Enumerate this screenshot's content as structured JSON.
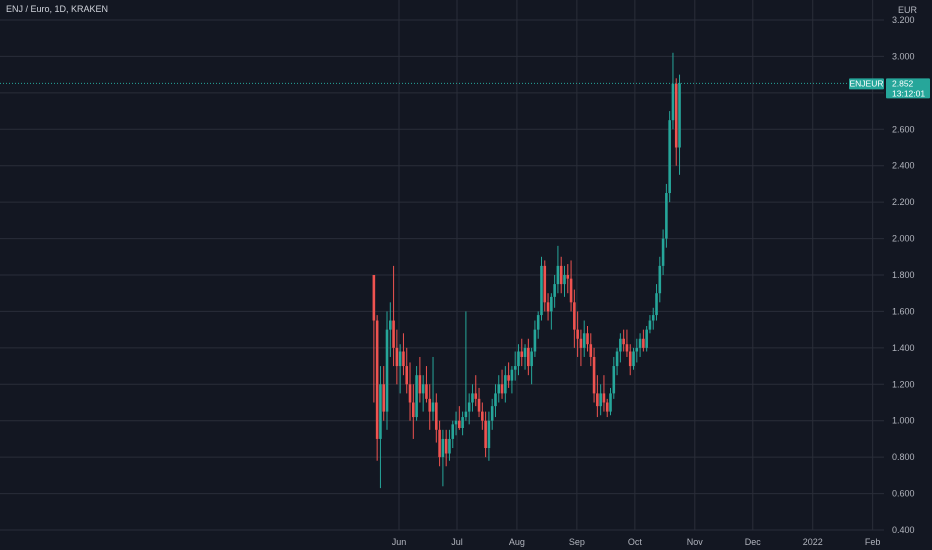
{
  "header": {
    "title": "ENJ / Euro, 1D, KRAKEN"
  },
  "price_scale": {
    "currency": "EUR"
  },
  "last_price": {
    "symbol": "ENJEUR",
    "price": "2.852",
    "countdown": "13:12:01",
    "value": 2.852
  },
  "colors": {
    "background": "#131722",
    "grid": "#2a2e39",
    "up": "#26a69a",
    "down": "#ef5350",
    "text": "#b2b5be",
    "badge": "#26a69a"
  },
  "chart_data": {
    "type": "candlestick",
    "title": "ENJ / Euro, 1D, KRAKEN",
    "y_unit": "EUR",
    "ylim": [
      0.4,
      3.2
    ],
    "yticks": [
      "0.400",
      "0.600",
      "0.800",
      "1.000",
      "1.200",
      "1.400",
      "1.600",
      "1.800",
      "2.000",
      "2.200",
      "2.400",
      "2.600",
      "2.800",
      "3.000",
      "3.200"
    ],
    "x_ticks": [
      {
        "label": "Jun",
        "date": "2021-06-01"
      },
      {
        "label": "Jul",
        "date": "2021-07-01"
      },
      {
        "label": "Aug",
        "date": "2021-08-01"
      },
      {
        "label": "Sep",
        "date": "2021-09-01"
      },
      {
        "label": "Oct",
        "date": "2021-10-01"
      },
      {
        "label": "Nov",
        "date": "2021-11-01"
      },
      {
        "label": "Dec",
        "date": "2021-12-01"
      },
      {
        "label": "2022",
        "date": "2022-01-01"
      },
      {
        "label": "Feb",
        "date": "2022-02-01"
      }
    ],
    "x_start": "2021-05-19",
    "grid": true,
    "candles": [
      [
        1.8,
        1.8,
        1.1,
        1.55
      ],
      [
        1.55,
        1.58,
        0.78,
        0.9
      ],
      [
        0.9,
        1.3,
        0.63,
        1.2
      ],
      [
        1.2,
        1.3,
        1.0,
        1.05
      ],
      [
        1.05,
        1.6,
        0.95,
        1.5
      ],
      [
        1.5,
        1.65,
        1.35,
        1.55
      ],
      [
        1.55,
        1.85,
        1.3,
        1.4
      ],
      [
        1.4,
        1.5,
        1.2,
        1.3
      ],
      [
        1.3,
        1.42,
        1.15,
        1.38
      ],
      [
        1.38,
        1.48,
        1.25,
        1.3
      ],
      [
        1.3,
        1.4,
        1.15,
        1.2
      ],
      [
        1.2,
        1.32,
        1.0,
        1.1
      ],
      [
        1.1,
        1.2,
        0.9,
        1.02
      ],
      [
        1.02,
        1.3,
        1.0,
        1.25
      ],
      [
        1.25,
        1.35,
        1.1,
        1.15
      ],
      [
        1.15,
        1.25,
        1.05,
        1.2
      ],
      [
        1.2,
        1.3,
        1.1,
        1.12
      ],
      [
        1.12,
        1.2,
        0.95,
        1.05
      ],
      [
        1.05,
        1.35,
        1.0,
        1.1
      ],
      [
        1.1,
        1.15,
        0.88,
        0.95
      ],
      [
        0.95,
        1.0,
        0.75,
        0.8
      ],
      [
        0.8,
        0.95,
        0.64,
        0.9
      ],
      [
        0.9,
        0.95,
        0.75,
        0.82
      ],
      [
        0.82,
        0.95,
        0.78,
        0.9
      ],
      [
        0.9,
        1.0,
        0.85,
        0.98
      ],
      [
        0.98,
        1.05,
        0.92,
        1.0
      ],
      [
        1.0,
        1.08,
        0.95,
        0.96
      ],
      [
        0.96,
        1.05,
        0.92,
        1.02
      ],
      [
        1.02,
        1.6,
        1.0,
        1.05
      ],
      [
        1.05,
        1.15,
        0.98,
        1.1
      ],
      [
        1.1,
        1.2,
        1.05,
        1.15
      ],
      [
        1.15,
        1.25,
        1.08,
        1.12
      ],
      [
        1.12,
        1.18,
        1.02,
        1.05
      ],
      [
        1.05,
        1.1,
        0.95,
        1.0
      ],
      [
        1.0,
        1.05,
        0.8,
        0.85
      ],
      [
        0.85,
        1.05,
        0.78,
        1.0
      ],
      [
        1.0,
        1.12,
        0.95,
        1.08
      ],
      [
        1.08,
        1.2,
        1.02,
        1.15
      ],
      [
        1.15,
        1.25,
        1.1,
        1.2
      ],
      [
        1.2,
        1.28,
        1.12,
        1.15
      ],
      [
        1.15,
        1.3,
        1.1,
        1.25
      ],
      [
        1.25,
        1.32,
        1.18,
        1.22
      ],
      [
        1.22,
        1.3,
        1.15,
        1.28
      ],
      [
        1.28,
        1.38,
        1.22,
        1.3
      ],
      [
        1.3,
        1.42,
        1.25,
        1.38
      ],
      [
        1.38,
        1.45,
        1.3,
        1.35
      ],
      [
        1.35,
        1.42,
        1.28,
        1.4
      ],
      [
        1.4,
        1.45,
        1.25,
        1.3
      ],
      [
        1.3,
        1.4,
        1.2,
        1.38
      ],
      [
        1.38,
        1.55,
        1.35,
        1.5
      ],
      [
        1.5,
        1.6,
        1.45,
        1.58
      ],
      [
        1.58,
        1.9,
        1.55,
        1.85
      ],
      [
        1.85,
        1.88,
        1.6,
        1.65
      ],
      [
        1.65,
        1.7,
        1.55,
        1.6
      ],
      [
        1.6,
        1.7,
        1.5,
        1.68
      ],
      [
        1.68,
        1.8,
        1.62,
        1.75
      ],
      [
        1.75,
        1.96,
        1.7,
        1.85
      ],
      [
        1.85,
        1.9,
        1.7,
        1.75
      ],
      [
        1.75,
        1.85,
        1.68,
        1.8
      ],
      [
        1.8,
        1.86,
        1.7,
        1.78
      ],
      [
        1.78,
        1.88,
        1.6,
        1.65
      ],
      [
        1.65,
        1.72,
        1.4,
        1.5
      ],
      [
        1.5,
        1.6,
        1.35,
        1.45
      ],
      [
        1.45,
        1.5,
        1.3,
        1.4
      ],
      [
        1.4,
        1.55,
        1.35,
        1.48
      ],
      [
        1.48,
        1.52,
        1.38,
        1.42
      ],
      [
        1.42,
        1.48,
        1.3,
        1.35
      ],
      [
        1.35,
        1.4,
        1.1,
        1.15
      ],
      [
        1.15,
        1.25,
        1.02,
        1.08
      ],
      [
        1.08,
        1.2,
        1.03,
        1.15
      ],
      [
        1.15,
        1.25,
        1.05,
        1.1
      ],
      [
        1.1,
        1.12,
        1.02,
        1.05
      ],
      [
        1.05,
        1.18,
        1.03,
        1.15
      ],
      [
        1.15,
        1.35,
        1.12,
        1.3
      ],
      [
        1.3,
        1.4,
        1.25,
        1.38
      ],
      [
        1.38,
        1.48,
        1.32,
        1.45
      ],
      [
        1.45,
        1.5,
        1.38,
        1.42
      ],
      [
        1.42,
        1.5,
        1.35,
        1.38
      ],
      [
        1.38,
        1.42,
        1.25,
        1.3
      ],
      [
        1.3,
        1.4,
        1.28,
        1.38
      ],
      [
        1.38,
        1.45,
        1.32,
        1.4
      ],
      [
        1.4,
        1.48,
        1.35,
        1.45
      ],
      [
        1.45,
        1.5,
        1.38,
        1.4
      ],
      [
        1.4,
        1.52,
        1.38,
        1.5
      ],
      [
        1.5,
        1.58,
        1.48,
        1.55
      ],
      [
        1.55,
        1.62,
        1.5,
        1.58
      ],
      [
        1.58,
        1.75,
        1.55,
        1.7
      ],
      [
        1.7,
        1.9,
        1.65,
        1.85
      ],
      [
        1.85,
        2.05,
        1.8,
        2.0
      ],
      [
        2.0,
        2.3,
        1.95,
        2.25
      ],
      [
        2.25,
        2.7,
        2.2,
        2.65
      ],
      [
        2.65,
        3.02,
        2.6,
        2.85
      ],
      [
        2.85,
        2.88,
        2.4,
        2.5
      ],
      [
        2.5,
        2.9,
        2.35,
        2.852
      ]
    ]
  }
}
